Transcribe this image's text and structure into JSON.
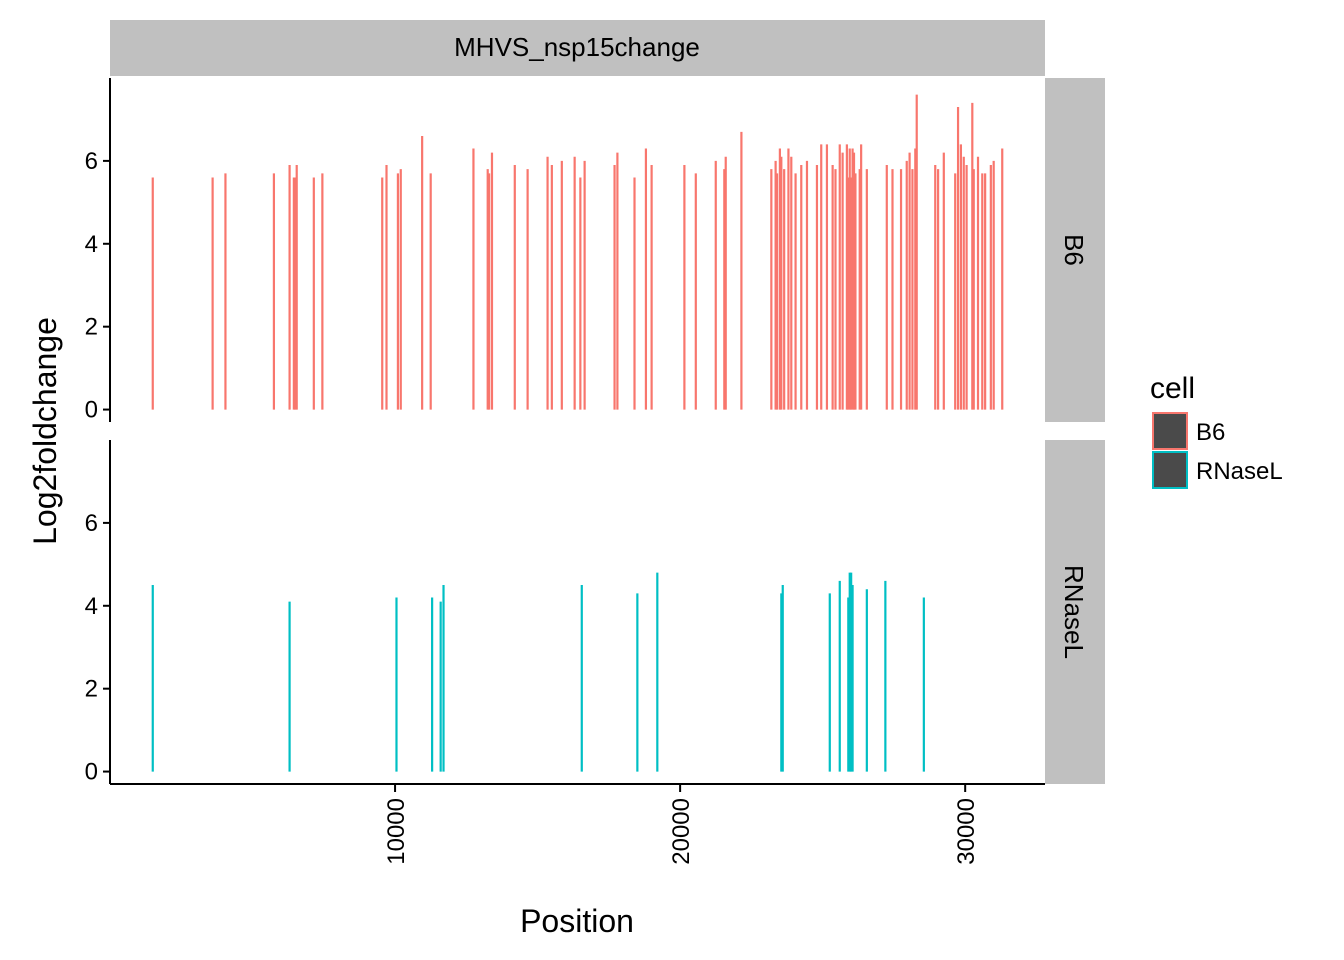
{
  "chart_data": {
    "type": "bar",
    "title": "",
    "facet_title": "MHVS_nsp15change",
    "xlabel": "Position",
    "ylabel": "Log2foldchange",
    "xlim": [
      0,
      32800
    ],
    "ylim": [
      -0.3,
      8
    ],
    "x_ticks": [
      10000,
      20000,
      30000
    ],
    "x_tick_labels": [
      "10000",
      "20000",
      "30000"
    ],
    "y_ticks": [
      0,
      2,
      4,
      6
    ],
    "y_tick_labels": [
      "0",
      "2",
      "4",
      "6"
    ],
    "grid": false,
    "legend": {
      "title": "cell",
      "position": "right",
      "entries": [
        {
          "label": "B6",
          "color": "#F8766D"
        },
        {
          "label": "RNaseL",
          "color": "#00BFC4"
        }
      ]
    },
    "panels": [
      {
        "strip_label": "B6",
        "color": "#F8766D",
        "x": [
          1500,
          3600,
          4050,
          5750,
          6300,
          6450,
          6500,
          6550,
          7150,
          7450,
          9550,
          9700,
          10100,
          10200,
          10950,
          11250,
          12750,
          13250,
          13300,
          13400,
          14200,
          14650,
          15350,
          15500,
          15850,
          16300,
          16500,
          16650,
          17700,
          17800,
          18400,
          18800,
          19000,
          20150,
          20550,
          21250,
          21550,
          21600,
          22150,
          23200,
          23350,
          23400,
          23500,
          23550,
          23650,
          23800,
          23900,
          24050,
          24250,
          24450,
          24800,
          24950,
          25150,
          25350,
          25450,
          25600,
          25700,
          25850,
          25900,
          25950,
          26000,
          26050,
          26100,
          26150,
          26300,
          26350,
          26550,
          27250,
          27450,
          27750,
          27950,
          28050,
          28150,
          28250,
          28300,
          28950,
          29050,
          29250,
          29650,
          29750,
          29850,
          29950,
          30050,
          30250,
          30300,
          30450,
          30600,
          30700,
          30900,
          31000,
          31300
        ],
        "values": [
          5.6,
          5.6,
          5.7,
          5.7,
          5.9,
          5.6,
          5.6,
          5.9,
          5.6,
          5.7,
          5.6,
          5.9,
          5.7,
          5.8,
          6.6,
          5.7,
          6.3,
          5.8,
          5.7,
          6.2,
          5.9,
          5.8,
          6.1,
          5.9,
          6.0,
          6.1,
          5.6,
          6.0,
          5.9,
          6.2,
          5.6,
          6.3,
          5.9,
          5.9,
          5.7,
          6.0,
          5.8,
          6.1,
          6.7,
          5.8,
          6.0,
          5.7,
          6.3,
          6.1,
          5.8,
          6.3,
          6.1,
          5.7,
          5.9,
          6.0,
          5.9,
          6.4,
          6.4,
          5.9,
          5.8,
          6.4,
          6.2,
          6.4,
          5.6,
          6.3,
          5.6,
          6.3,
          6.2,
          5.7,
          5.8,
          6.4,
          5.8,
          5.9,
          5.8,
          5.8,
          6.0,
          6.2,
          5.8,
          6.3,
          7.6,
          5.9,
          5.8,
          6.2,
          5.7,
          7.3,
          6.4,
          6.1,
          5.9,
          7.4,
          5.8,
          6.1,
          5.7,
          5.7,
          5.9,
          6.0,
          6.3
        ]
      },
      {
        "strip_label": "RNaseL",
        "color": "#00BFC4",
        "x": [
          1500,
          6300,
          10050,
          11300,
          11600,
          11700,
          16550,
          18500,
          19200,
          23550,
          23600,
          25250,
          25600,
          25900,
          25950,
          26000,
          26050,
          26550,
          27200,
          28550
        ],
        "values": [
          4.5,
          4.1,
          4.2,
          4.2,
          4.1,
          4.5,
          4.5,
          4.3,
          4.8,
          4.3,
          4.5,
          4.3,
          4.6,
          4.2,
          4.8,
          4.8,
          4.5,
          4.4,
          4.6,
          4.2
        ]
      }
    ]
  }
}
